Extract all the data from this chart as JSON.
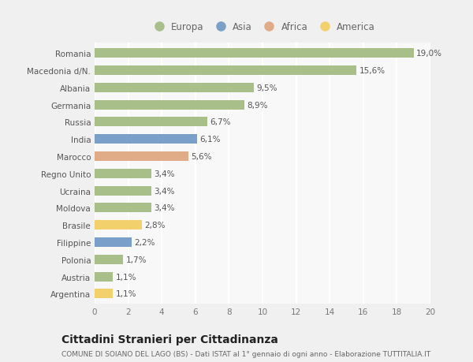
{
  "categories": [
    "Romania",
    "Macedonia d/N.",
    "Albania",
    "Germania",
    "Russia",
    "India",
    "Marocco",
    "Regno Unito",
    "Ucraina",
    "Moldova",
    "Brasile",
    "Filippine",
    "Polonia",
    "Austria",
    "Argentina"
  ],
  "values": [
    19.0,
    15.6,
    9.5,
    8.9,
    6.7,
    6.1,
    5.6,
    3.4,
    3.4,
    3.4,
    2.8,
    2.2,
    1.7,
    1.1,
    1.1
  ],
  "labels": [
    "19,0%",
    "15,6%",
    "9,5%",
    "8,9%",
    "6,7%",
    "6,1%",
    "5,6%",
    "3,4%",
    "3,4%",
    "3,4%",
    "2,8%",
    "2,2%",
    "1,7%",
    "1,1%",
    "1,1%"
  ],
  "continent": [
    "Europa",
    "Europa",
    "Europa",
    "Europa",
    "Europa",
    "Asia",
    "Africa",
    "Europa",
    "Europa",
    "Europa",
    "America",
    "Asia",
    "Europa",
    "Europa",
    "America"
  ],
  "colors": {
    "Europa": "#a8bf8a",
    "Asia": "#7a9fc9",
    "Africa": "#e0ab87",
    "America": "#f2d06b"
  },
  "legend_order": [
    "Europa",
    "Asia",
    "Africa",
    "America"
  ],
  "xlim": [
    0,
    20
  ],
  "xticks": [
    0,
    2,
    4,
    6,
    8,
    10,
    12,
    14,
    16,
    18,
    20
  ],
  "title": "Cittadini Stranieri per Cittadinanza",
  "subtitle": "COMUNE DI SOIANO DEL LAGO (BS) - Dati ISTAT al 1° gennaio di ogni anno - Elaborazione TUTTITALIA.IT",
  "bg_color": "#f0f0f0",
  "plot_bg_color": "#f8f8f8",
  "grid_color": "#ffffff",
  "bar_height": 0.55,
  "label_fontsize": 7.5,
  "tick_fontsize": 7.5,
  "title_fontsize": 10,
  "subtitle_fontsize": 6.5,
  "legend_fontsize": 8.5
}
